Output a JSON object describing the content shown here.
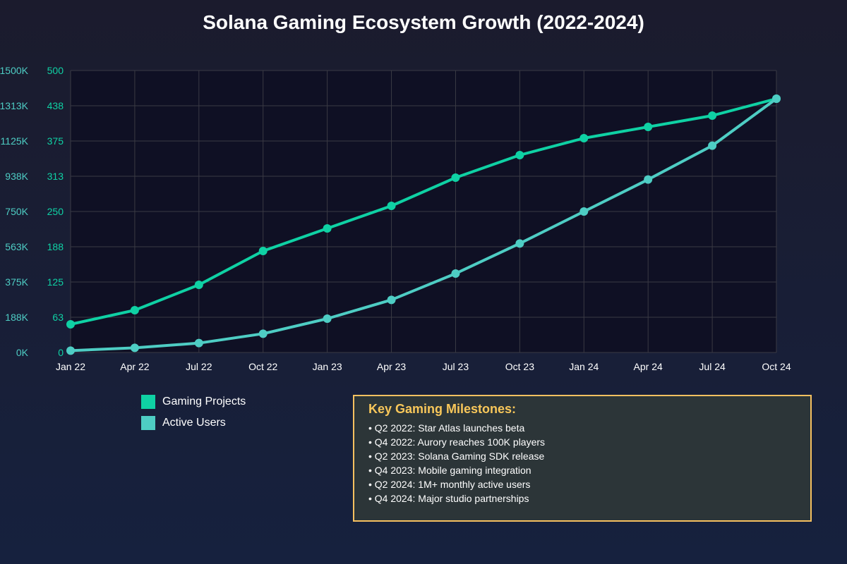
{
  "colors": {
    "projects": "#0fd1a4",
    "users": "#4ecdc4",
    "grid": "#3a3a44",
    "plot_bg": "#0f1024",
    "tick_text": "#ffffff",
    "accent": "#f8c75a"
  },
  "chart_data": {
    "type": "line",
    "title": "Solana Gaming Ecosystem Growth (2022-2024)",
    "categories": [
      "Jan 22",
      "Apr 22",
      "Jul 22",
      "Oct 22",
      "Jan 23",
      "Apr 23",
      "Jul 23",
      "Oct 23",
      "Jan 24",
      "Apr 24",
      "Jul 24",
      "Oct 24"
    ],
    "series": [
      {
        "name": "Gaming Projects",
        "axis": "right-inner",
        "values": [
          50,
          75,
          120,
          180,
          220,
          260,
          310,
          350,
          380,
          400,
          420,
          450
        ]
      },
      {
        "name": "Active Users",
        "axis": "left-outer",
        "values": [
          10000,
          25000,
          50000,
          100000,
          180000,
          280000,
          420000,
          580000,
          750000,
          920000,
          1100000,
          1350000
        ]
      }
    ],
    "y_projects": {
      "min": 0,
      "max": 500,
      "ticks": [
        "0",
        "63",
        "125",
        "188",
        "250",
        "313",
        "375",
        "438",
        "500"
      ]
    },
    "y_users": {
      "min": 0,
      "max": 1500000,
      "ticks": [
        "0K",
        "188K",
        "375K",
        "563K",
        "750K",
        "938K",
        "1125K",
        "1313K",
        "1500K"
      ]
    },
    "grid": true,
    "legend_position": "bottom-left"
  },
  "legend": [
    {
      "label": "Gaming Projects"
    },
    {
      "label": "Active Users"
    }
  ],
  "milestones": {
    "title": "Key Gaming Milestones:",
    "items": [
      "• Q2 2022: Star Atlas launches beta",
      "• Q4 2022: Aurory reaches 100K players",
      "• Q2 2023: Solana Gaming SDK release",
      "• Q4 2023: Mobile gaming integration",
      "• Q2 2024: 1M+ monthly active users",
      "• Q4 2024: Major studio partnerships"
    ]
  }
}
